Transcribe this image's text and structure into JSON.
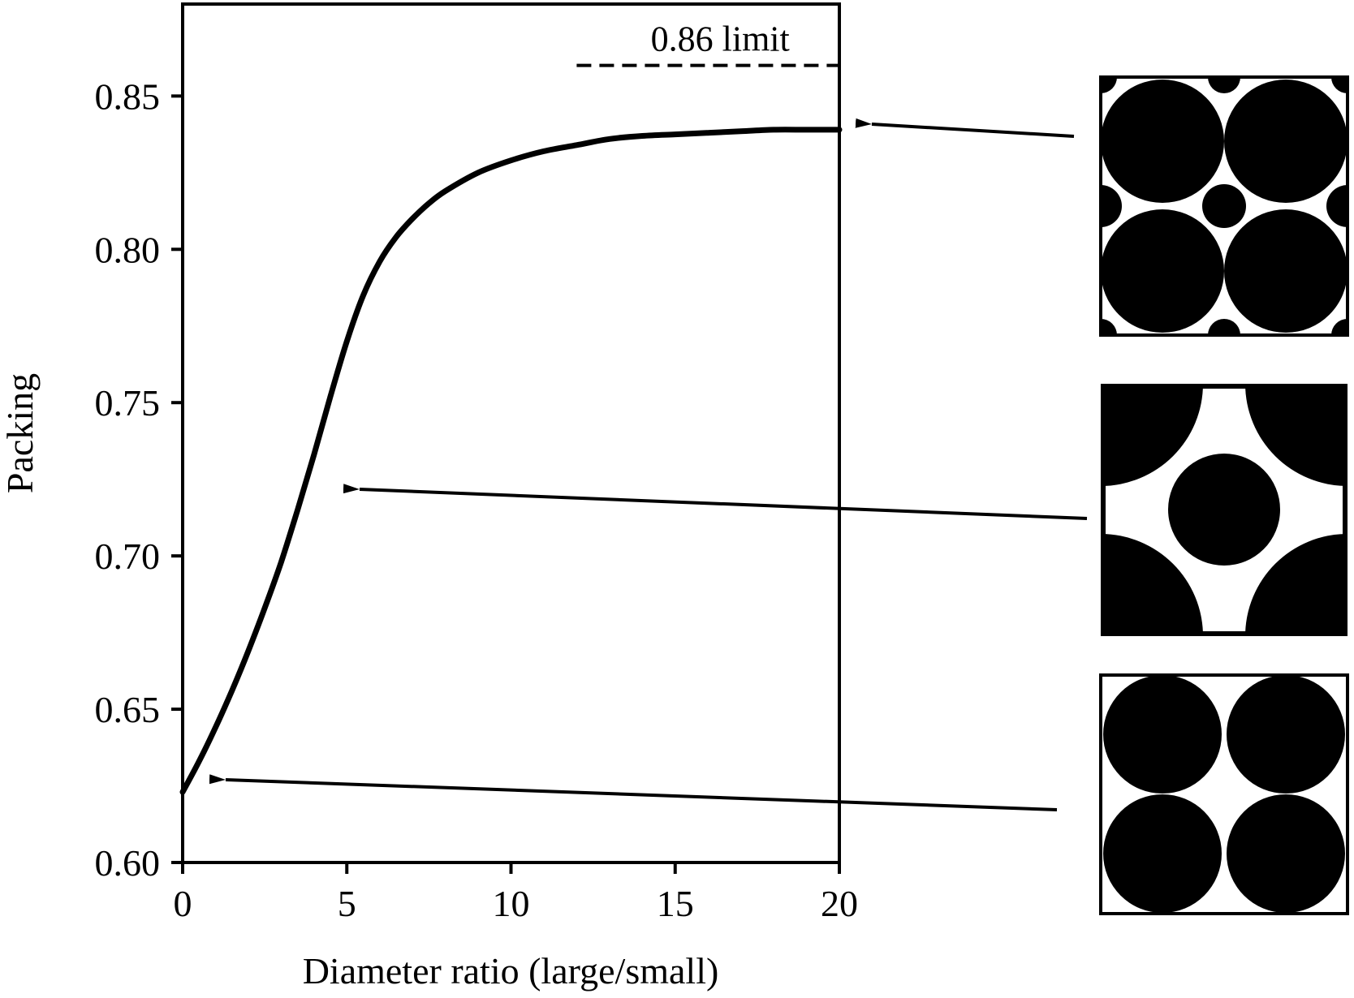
{
  "chart_data": {
    "type": "line",
    "xlabel": "Diameter ratio (large/small)",
    "ylabel": "Packing",
    "xlim": [
      0,
      20
    ],
    "ylim": [
      0.6,
      0.88
    ],
    "x_ticks": [
      0,
      5,
      10,
      15,
      20
    ],
    "x_tick_labels": [
      "0",
      "5",
      "10",
      "15",
      "20"
    ],
    "y_ticks": [
      0.6,
      0.65,
      0.7,
      0.75,
      0.8,
      0.85
    ],
    "y_tick_labels": [
      "0.60",
      "0.65",
      "0.70",
      "0.75",
      "0.80",
      "0.85"
    ],
    "grid": false,
    "series": [
      {
        "x": [
          0,
          0.5,
          1,
          1.5,
          2,
          2.5,
          3,
          3.5,
          4,
          4.5,
          5,
          5.5,
          6,
          6.5,
          7,
          7.5,
          8,
          9,
          10,
          11,
          12,
          13,
          14,
          15,
          16,
          17,
          18,
          19,
          20
        ],
        "y": [
          0.623,
          0.633,
          0.644,
          0.656,
          0.669,
          0.683,
          0.698,
          0.715,
          0.733,
          0.752,
          0.77,
          0.785,
          0.796,
          0.804,
          0.81,
          0.815,
          0.819,
          0.825,
          0.829,
          0.832,
          0.834,
          0.836,
          0.837,
          0.8375,
          0.838,
          0.8385,
          0.839,
          0.839,
          0.839
        ],
        "color": "#000000"
      }
    ],
    "reference_line": {
      "y": 0.86,
      "x_range": [
        12,
        20
      ],
      "label": "0.86 limit"
    },
    "annotations": [
      {
        "type": "arrow",
        "from_inset": 0,
        "to_x": 20.5,
        "to_y": 0.839
      },
      {
        "type": "arrow",
        "from_inset": 1,
        "to_x": 5.3,
        "to_y": 0.722
      },
      {
        "type": "arrow",
        "from_inset": 2,
        "to_x": 1.2,
        "to_y": 0.627
      }
    ],
    "insets": [
      "bimodal-packing-with-small-spheres",
      "body-centered-packing",
      "simple-square-packing"
    ]
  }
}
